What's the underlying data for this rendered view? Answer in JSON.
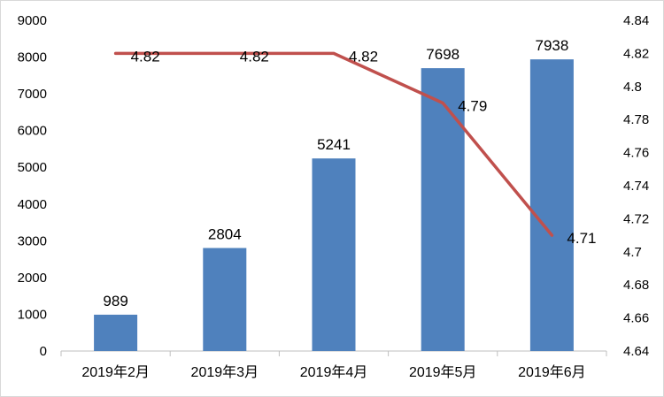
{
  "chart_data": {
    "type": "bar",
    "categories": [
      "2019年2月",
      "2019年3月",
      "2019年4月",
      "2019年5月",
      "2019年6月"
    ],
    "series": [
      {
        "type": "bar",
        "axis": "left",
        "values": [
          989,
          2804,
          5241,
          7698,
          7938
        ],
        "color": "#4f81bd"
      },
      {
        "type": "line",
        "axis": "right",
        "values": [
          4.82,
          4.82,
          4.82,
          4.79,
          4.71
        ],
        "color": "#c0504d"
      }
    ],
    "y_left": {
      "min": 0,
      "max": 9000,
      "step": 1000,
      "ticks": [
        "0",
        "1000",
        "2000",
        "3000",
        "4000",
        "5000",
        "6000",
        "7000",
        "8000",
        "9000"
      ]
    },
    "y_right": {
      "min": 4.64,
      "max": 4.84,
      "step": 0.02,
      "ticks": [
        "4.64",
        "4.66",
        "4.68",
        "4.7",
        "4.72",
        "4.74",
        "4.76",
        "4.78",
        "4.8",
        "4.82",
        "4.84"
      ]
    },
    "bar_labels": [
      "989",
      "2804",
      "5241",
      "7698",
      "7938"
    ],
    "line_labels": [
      "4.82",
      "4.82",
      "4.82",
      "4.79",
      "4.71"
    ],
    "grid": false,
    "legend": "none"
  }
}
